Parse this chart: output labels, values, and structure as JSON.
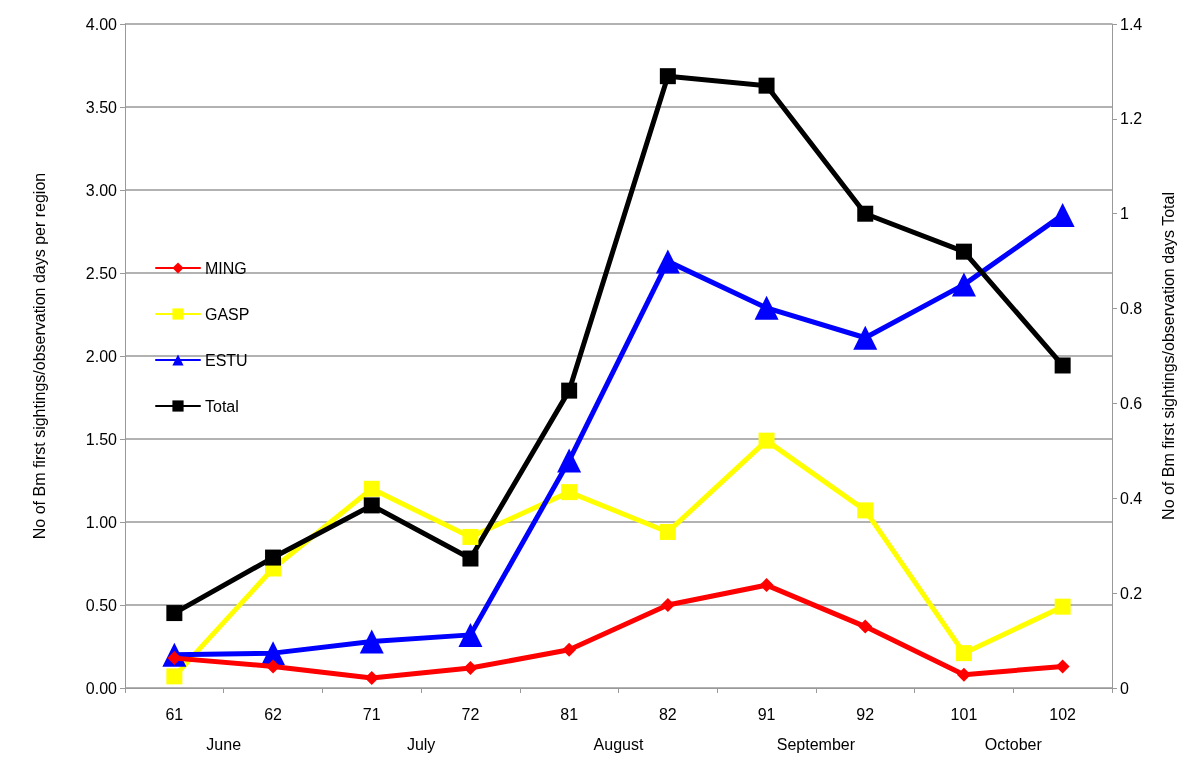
{
  "chart_data": {
    "type": "line",
    "ylabel": "No of Bm first sightings/observation days per region",
    "y2label": "No of Bm first sightings/observation days Total",
    "categories": [
      "61",
      "62",
      "71",
      "72",
      "81",
      "82",
      "91",
      "92",
      "101",
      "102"
    ],
    "annotations": [
      "June",
      "July",
      "August",
      "September",
      "October"
    ],
    "series": [
      {
        "name": "MING",
        "color": "#ff0000",
        "marker": "diamond",
        "values": [
          0.18,
          0.13,
          0.06,
          0.12,
          0.23,
          0.5,
          0.62,
          0.37,
          0.08,
          0.13
        ]
      },
      {
        "name": "GASP",
        "color": "#ffff00",
        "marker": "square",
        "values": [
          0.07,
          0.72,
          1.2,
          0.91,
          1.18,
          0.94,
          1.49,
          1.07,
          0.21,
          0.49
        ]
      },
      {
        "name": "ESTU",
        "color": "#0000ff",
        "marker": "triangle",
        "values": [
          0.2,
          0.21,
          0.28,
          0.32,
          1.37,
          2.57,
          2.29,
          2.11,
          2.43,
          2.85
        ]
      },
      {
        "name": "Total",
        "color": "#000000",
        "marker": "square",
        "axis": "y2",
        "values": [
          0.158,
          0.275,
          0.385,
          0.273,
          0.627,
          1.29,
          1.27,
          1.0,
          0.92,
          0.68
        ]
      }
    ],
    "ylim": [
      0,
      4
    ],
    "yticks": [
      {
        "value": 0,
        "label": "0.00"
      },
      {
        "value": 0.5,
        "label": "0.50"
      },
      {
        "value": 1,
        "label": "1.00"
      },
      {
        "value": 1.5,
        "label": "1.50"
      },
      {
        "value": 2,
        "label": "2.00"
      },
      {
        "value": 2.5,
        "label": "2.50"
      },
      {
        "value": 3,
        "label": "3.00"
      },
      {
        "value": 3.5,
        "label": "3.50"
      },
      {
        "value": 4,
        "label": "4.00"
      }
    ],
    "y2lim": [
      0,
      1.4
    ],
    "y2ticks": [
      0,
      0.2,
      0.4,
      0.6,
      0.8,
      1,
      1.2,
      1.4
    ],
    "grid": "y",
    "legend": "left",
    "line_style": "solid"
  }
}
